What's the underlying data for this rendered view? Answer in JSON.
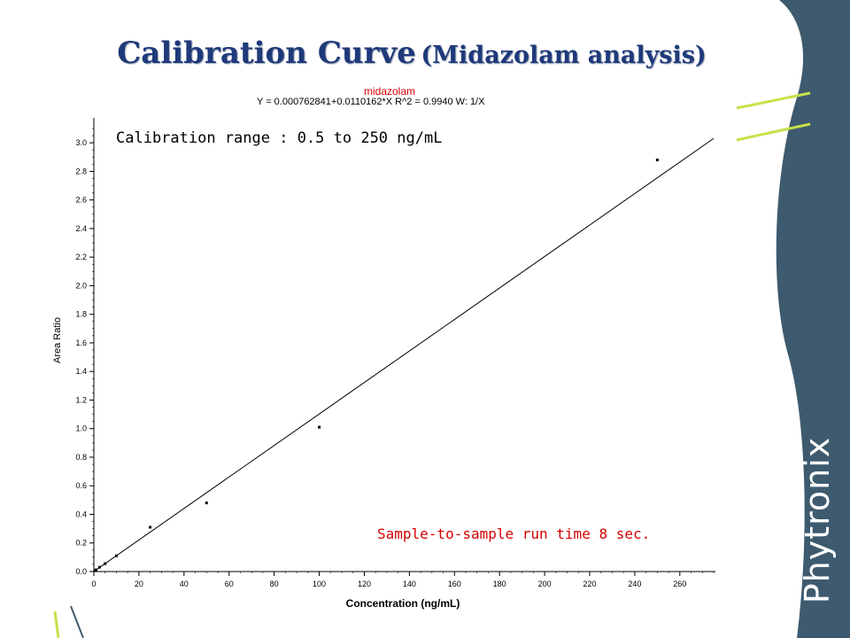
{
  "slide": {
    "title_main": "Calibration Curve",
    "title_sub": "(Midazolam analysis)",
    "brand": "Phytronix",
    "colors": {
      "title": "#1f3a7a",
      "brand_panel": "#3e5a6e",
      "accent_lines": "#c8e04a",
      "annotation_red": "#d40000"
    }
  },
  "chart_data": {
    "type": "scatter",
    "title": "midazolam",
    "equation": "Y = 0.000762841+0.0110162*X   R^2 = 0.9940   W: 1/X",
    "xlabel": "Concentration (ng/mL)",
    "ylabel": "Area Ratio",
    "xlim": [
      0,
      275
    ],
    "ylim": [
      0,
      3.1
    ],
    "xticks": [
      0,
      20,
      40,
      60,
      80,
      100,
      120,
      140,
      160,
      180,
      200,
      220,
      240,
      260
    ],
    "yticks": [
      0.0,
      0.2,
      0.4,
      0.6,
      0.8,
      1.0,
      1.2,
      1.4,
      1.6,
      1.8,
      2.0,
      2.2,
      2.4,
      2.6,
      2.8,
      3.0
    ],
    "series": [
      {
        "x": [
          0.5,
          1,
          2.5,
          5,
          10,
          25,
          50,
          100,
          250
        ],
        "y": [
          0.006,
          0.012,
          0.03,
          0.055,
          0.11,
          0.31,
          0.48,
          1.01,
          2.88
        ]
      }
    ],
    "fit": {
      "slope": 0.0110162,
      "intercept": 0.000762841,
      "r2": 0.994,
      "weighting": "1/X"
    },
    "annotations": [
      "Calibration range : 0.5 to 250 ng/mL",
      "Sample-to-sample run time 8 sec."
    ],
    "grid": false
  }
}
